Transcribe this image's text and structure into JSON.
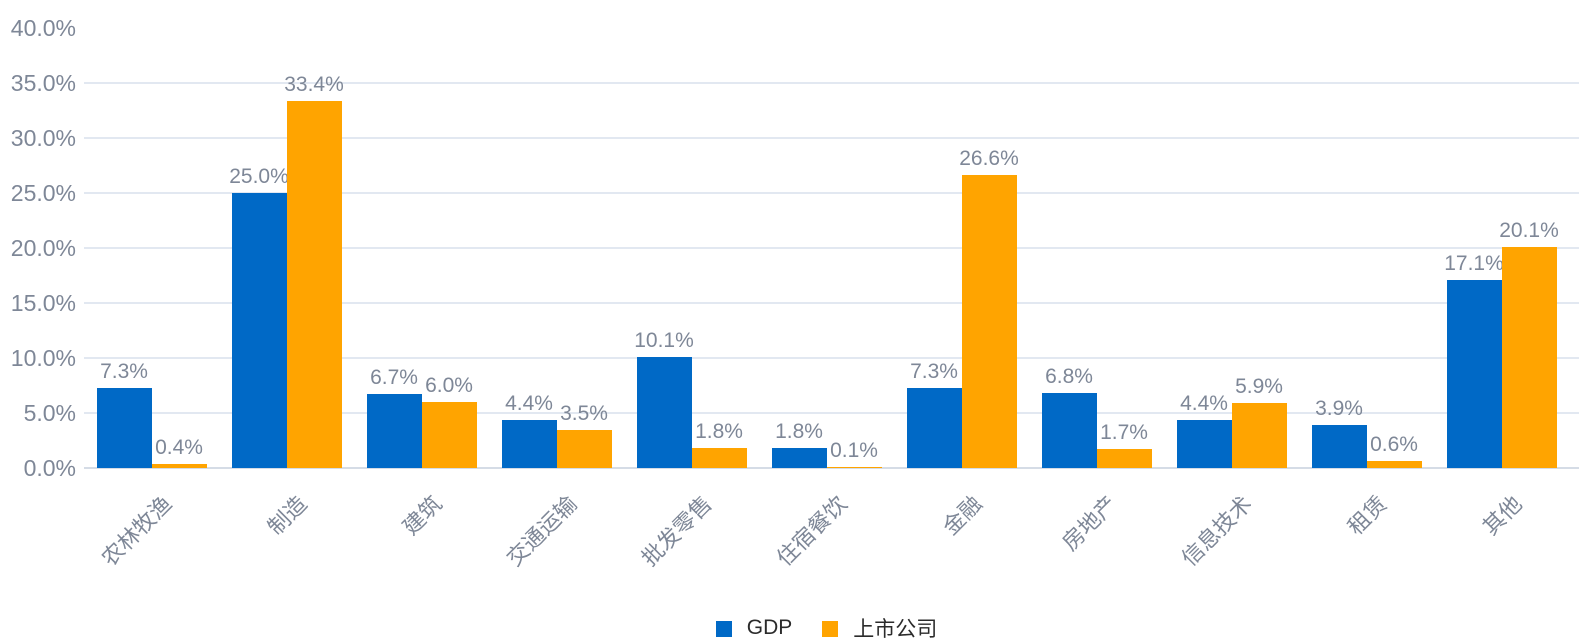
{
  "chart_data": {
    "type": "bar",
    "title": "",
    "categories": [
      "农林牧渔",
      "制造",
      "建筑",
      "交通运输",
      "批发零售",
      "住宿餐饮",
      "金融",
      "房地产",
      "信息技术",
      "租赁",
      "其他"
    ],
    "series": [
      {
        "name": "GDP",
        "color": "#0069C6",
        "values": [
          7.3,
          25.0,
          6.7,
          4.4,
          10.1,
          1.8,
          7.3,
          6.8,
          4.4,
          3.9,
          17.1
        ],
        "labels": [
          "7.3%",
          "25.0%",
          "6.7%",
          "4.4%",
          "10.1%",
          "1.8%",
          "7.3%",
          "6.8%",
          "4.4%",
          "3.9%",
          "17.1%"
        ]
      },
      {
        "name": "上市公司",
        "color": "#FFA400",
        "values": [
          0.4,
          33.4,
          6.0,
          3.5,
          1.8,
          0.1,
          26.6,
          1.7,
          5.9,
          0.6,
          20.1
        ],
        "labels": [
          "0.4%",
          "33.4%",
          "6.0%",
          "3.5%",
          "1.8%",
          "0.1%",
          "26.6%",
          "1.7%",
          "5.9%",
          "0.6%",
          "20.1%"
        ]
      }
    ],
    "y_axis": {
      "ticks": [
        "0.0%",
        "5.0%",
        "10.0%",
        "15.0%",
        "20.0%",
        "25.0%",
        "30.0%",
        "35.0%",
        "40.0%"
      ],
      "min": 0,
      "max": 40,
      "step": 5,
      "top_gridline_hidden": true
    },
    "grid": true,
    "legend_position": "bottom-center",
    "xlabel": "",
    "ylabel": ""
  },
  "colors": {
    "axis_label": "#7E8797",
    "value_label": "#7E8797",
    "gridline": "#E2E8F1",
    "baseline": "#D5DCE6",
    "legend_text": "#2B2B2B",
    "background": "#FFFFFF"
  }
}
